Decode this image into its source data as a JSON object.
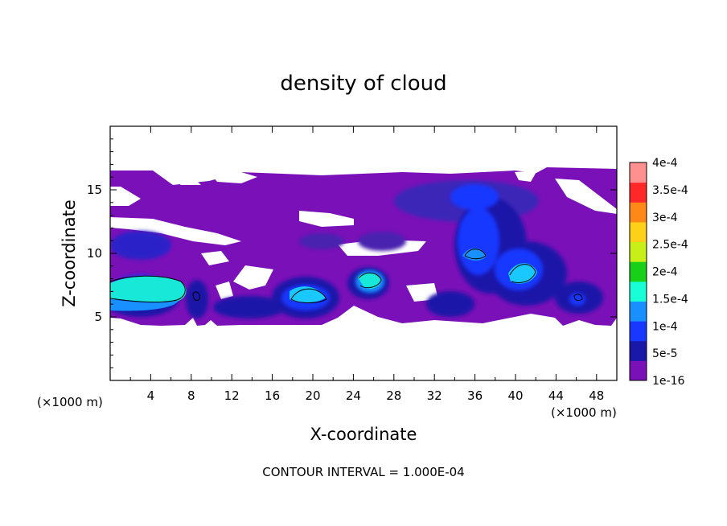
{
  "chart_data": {
    "type": "heatmap",
    "title": "density of cloud",
    "xlabel": "X-coordinate",
    "ylabel": "Z-coordinate",
    "x_unit": "(×1000 m)",
    "y_unit": "(×1000 m)",
    "xlim": [
      0,
      50
    ],
    "ylim": [
      0,
      20
    ],
    "x_ticks": [
      "4",
      "8",
      "12",
      "16",
      "20",
      "24",
      "28",
      "32",
      "36",
      "40",
      "44",
      "48"
    ],
    "y_ticks": [
      "5",
      "10",
      "15"
    ],
    "colorbar": {
      "ticks": [
        "1e-16",
        "5e-5",
        "1e-4",
        "1.5e-4",
        "2e-4",
        "2.5e-4",
        "3e-4",
        "3.5e-4",
        "4e-4"
      ],
      "colors": [
        "#7a10b8",
        "#1a18a8",
        "#1838ff",
        "#1890ff",
        "#18ffd8",
        "#18d018",
        "#c8f018",
        "#ffd018",
        "#ff8818",
        "#ff2828",
        "#ff9090"
      ]
    },
    "contour_interval": "CONTOUR INTERVAL = 1.000E-04",
    "cloud_layers": [
      {
        "x": [
          0,
          50
        ],
        "z": [
          4.5,
          16.5
        ],
        "level": "1e-16"
      },
      {
        "x": [
          32,
          49
        ],
        "z": [
          6,
          15.5
        ],
        "level": "5e-5"
      },
      {
        "x": [
          34,
          38
        ],
        "z": [
          9,
          15
        ],
        "level": "1e-4"
      },
      {
        "x": [
          0,
          8
        ],
        "z": [
          5,
          8
        ],
        "level": "1.5e-4"
      },
      {
        "x": [
          17,
          22
        ],
        "z": [
          5.5,
          7.5
        ],
        "level": "1e-4"
      },
      {
        "x": [
          24,
          27
        ],
        "z": [
          7,
          8.5
        ],
        "level": "1.5e-4"
      },
      {
        "x": [
          39,
          42
        ],
        "z": [
          7,
          9.5
        ],
        "level": "1.5e-4"
      }
    ]
  }
}
